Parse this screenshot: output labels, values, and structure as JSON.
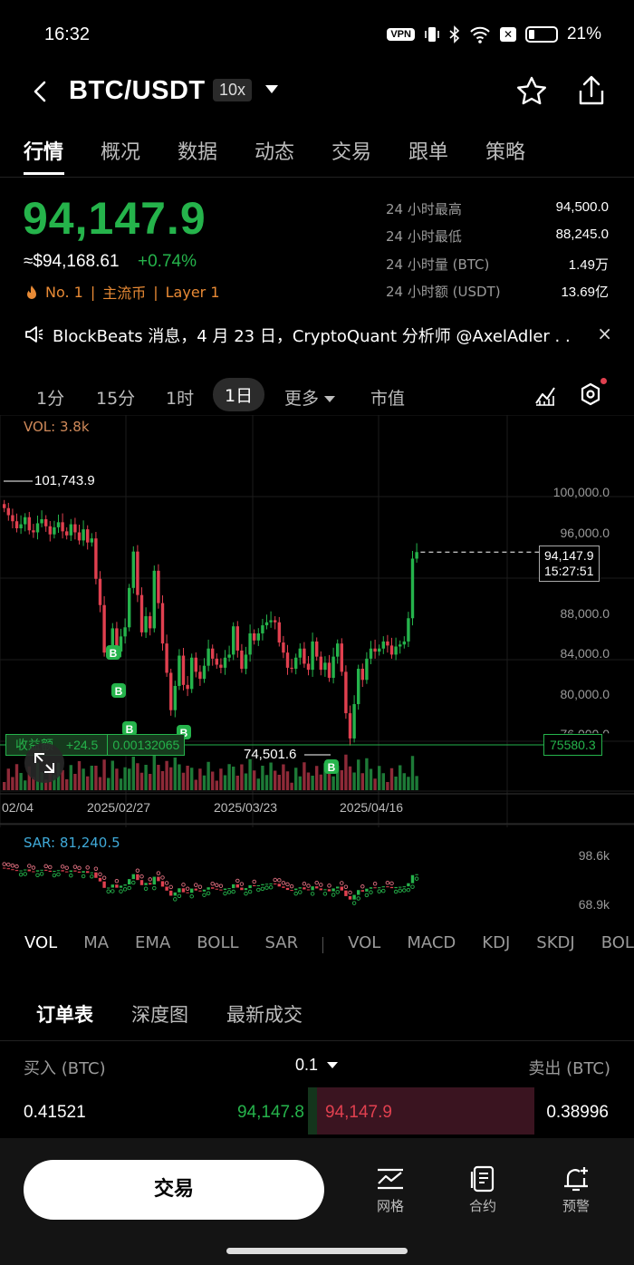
{
  "status": {
    "time": "16:32",
    "vpn": "VPN",
    "battery": "21%"
  },
  "header": {
    "pair": "BTC/USDT",
    "leverage": "10x"
  },
  "tabs": [
    "行情",
    "概况",
    "数据",
    "动态",
    "交易",
    "跟单",
    "策略"
  ],
  "price": {
    "last": "94,147.9",
    "usd": "≈$94,168.61",
    "change": "+0.74%",
    "rank": "No. 1",
    "tag1": "主流币",
    "tag2": "Layer 1",
    "sep": "|"
  },
  "stats": [
    {
      "label": "24 小时最高",
      "value": "94,500.0"
    },
    {
      "label": "24 小时最低",
      "value": "88,245.0"
    },
    {
      "label": "24 小时量 (BTC)",
      "value": "1.49万"
    },
    {
      "label": "24 小时额 (USDT)",
      "value": "13.69亿"
    }
  ],
  "news": {
    "text": "BlockBeats 消息，4 月 23 日，CryptoQuant 分析师 @AxelAdler . .",
    "close": "×"
  },
  "intervals": {
    "m1": "1分",
    "m15": "15分",
    "h1": "1时",
    "d1": "1日",
    "more": "更多",
    "mktcap": "市值"
  },
  "chart": {
    "vol_label": "VOL: 3.8k",
    "sar_label": "SAR: 81,240.5",
    "max_label": "101,743.9",
    "min_label": "74,501.6",
    "price_tag_price": "94,147.9",
    "price_tag_time": "15:27:51",
    "pnl_label": "收益额",
    "pnl_value": "+24.5",
    "pnl_qty": "0.00132065",
    "entry_price": "75580.3",
    "y_ticks": [
      "100,000.0",
      "96,000.0",
      "88,000.0",
      "84,000.0",
      "80,000.0",
      "76,000.0"
    ],
    "x_ticks": [
      "02/04",
      "2025/02/27",
      "2025/03/23",
      "2025/04/16"
    ],
    "sar_ticks": [
      "98.6k",
      "68.9k"
    ],
    "buy_marker": "B"
  },
  "chart_data": {
    "type": "candlestick",
    "title": "",
    "x_ticks": [
      "02/04",
      "2025/02/27",
      "2025/03/23",
      "2025/04/16"
    ],
    "ylim": [
      74000,
      102000
    ],
    "y_ticks": [
      76000,
      80000,
      84000,
      88000,
      96000,
      100000
    ],
    "close": [
      98500,
      97800,
      97200,
      96500,
      96900,
      97600,
      96300,
      96100,
      97000,
      97400,
      96700,
      95900,
      96600,
      97100,
      96200,
      95800,
      96900,
      96100,
      95300,
      96400,
      95100,
      95500,
      91500,
      88900,
      84200,
      84400,
      86600,
      84300,
      85800,
      86700,
      90600,
      94200,
      89900,
      86200,
      87800,
      86600,
      92300,
      89100,
      85100,
      82200,
      78500,
      80900,
      83900,
      81000,
      80600,
      83700,
      82300,
      81600,
      82900,
      84600,
      83600,
      83000,
      82700,
      83700,
      84000,
      86800,
      84400,
      82600,
      84000,
      86100,
      85400,
      86100,
      86900,
      87200,
      87400,
      87200,
      85200,
      84200,
      82700,
      82600,
      83700,
      84600,
      83100,
      82500,
      85300,
      83800,
      82500,
      83200,
      81700,
      83800,
      85100,
      82300,
      78200,
      75700,
      79100,
      82600,
      81500,
      83600,
      84600,
      84300,
      84600,
      85300,
      84900,
      84000,
      84800,
      85000,
      85300,
      87600,
      93500,
      94147.9
    ],
    "buy_markers": [
      "B",
      "B",
      "B",
      "B",
      "B"
    ],
    "indicators": {
      "vol": 3800,
      "sar": 81240.5
    },
    "max": 101743.9,
    "min": 74501.6,
    "last": 94147.9
  },
  "indicator_tabs": {
    "main": [
      "VOL",
      "MA",
      "EMA",
      "BOLL",
      "SAR"
    ],
    "sub": [
      "VOL",
      "MACD",
      "KDJ",
      "SKDJ",
      "BOL"
    ]
  },
  "orderbook": {
    "tabs": [
      "订单表",
      "深度图",
      "最新成交"
    ],
    "buy_header": "买入 (BTC)",
    "step": "0.1",
    "sell_header": "卖出 (BTC)",
    "bid_qty": "0.41521",
    "bid_price": "94,147.8",
    "ask_price": "94,147.9",
    "ask_qty": "0.38996"
  },
  "bottom": {
    "trade": "交易",
    "grid": "网格",
    "contract": "合约",
    "alert": "预警"
  },
  "colors": {
    "up": "#25b34b",
    "down": "#e0404f",
    "bg": "#000000"
  },
  "icons": [
    "back-icon",
    "star-icon",
    "share-icon",
    "speaker-icon",
    "indicator-icon",
    "settings-icon",
    "expand-icon",
    "grid-icon",
    "contract-icon",
    "alert-icon"
  ]
}
